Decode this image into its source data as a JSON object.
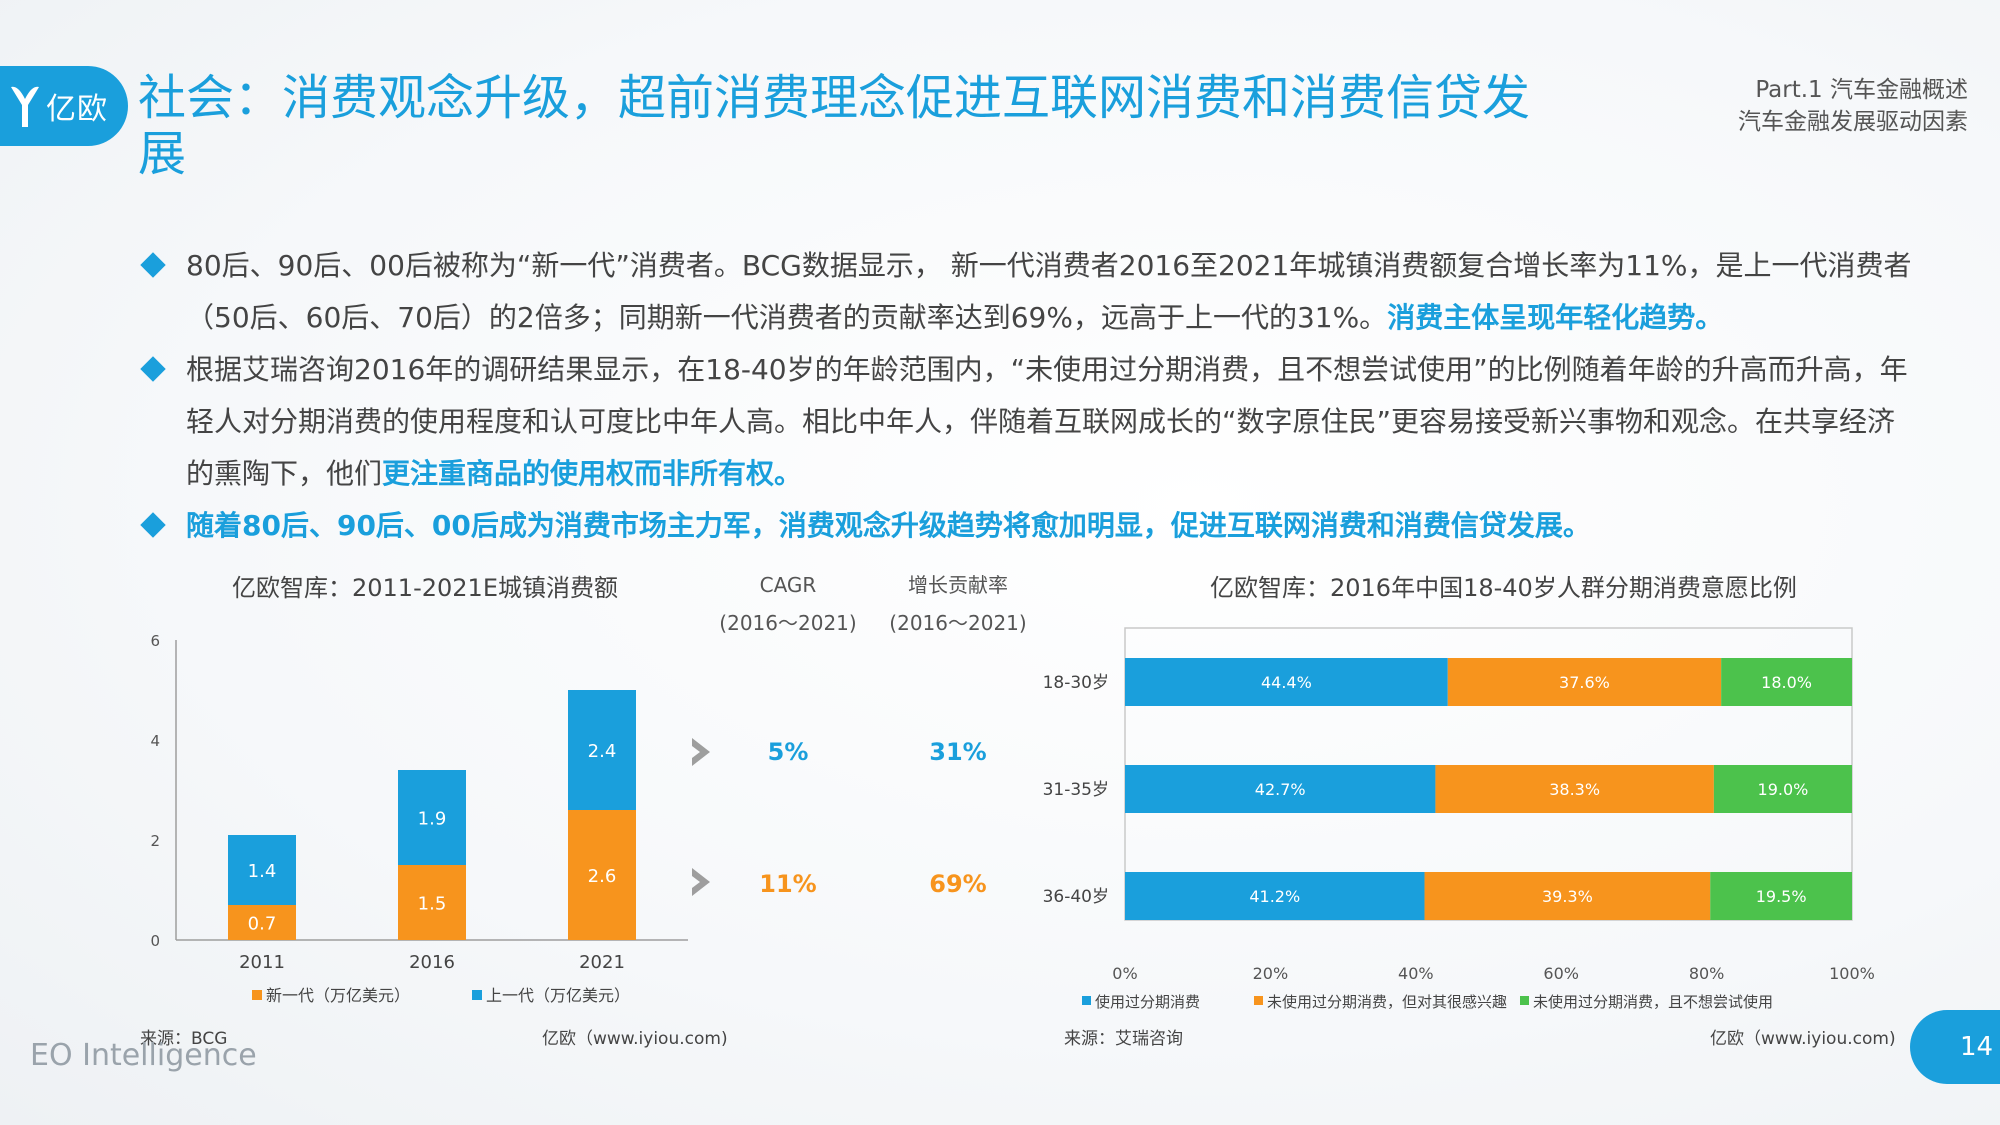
{
  "brand": {
    "logo_text": "亿欧",
    "footer": "EO Intelligence",
    "page_number": "14"
  },
  "title": "社会：消费观念升级，超前消费理念促进互联网消费和消费信贷发展",
  "part": {
    "line1": "Part.1 汽车金融概述",
    "line2": "汽车金融发展驱动因素"
  },
  "bullets": [
    {
      "text": "80后、90后、00后被称为“新一代”消费者。BCG数据显示， 新一代消费者2016至2021年城镇消费额复合增长率为11%，是上一代消费者（50后、60后、70后）的2倍多；同期新一代消费者的贡献率达到69%，远高于上一代的31%。",
      "highlight": "消费主体呈现年轻化趋势。"
    },
    {
      "text": "根据艾瑞咨询2016年的调研结果显示，在18-40岁的年龄范围内，“未使用过分期消费，且不想尝试使用”的比例随着年龄的升高而升高，年轻人对分期消费的使用程度和认可度比中年人高。相比中年人，伴随着互联网成长的“数字原住民”更容易接受新兴事物和观念。在共享经济的熏陶下，他们",
      "highlight": "更注重商品的使用权而非所有权。"
    },
    {
      "text": "",
      "highlight": "随着80后、90后、00后成为消费市场主力军，消费观念升级趋势将愈加明显，促进互联网消费和消费信贷发展。"
    }
  ],
  "left_panel": {
    "title": "亿欧智库：2011-2021E城镇消费额",
    "cagr_header": "CAGR",
    "contrib_header": "增长贡献率",
    "period": "(2016～2021)",
    "rows": [
      {
        "cagr": "5%",
        "contrib": "31%",
        "color": "#1a9fdc"
      },
      {
        "cagr": "11%",
        "contrib": "69%",
        "color": "#f7941d"
      }
    ],
    "source": "来源：BCG",
    "credit": "亿欧（www.iyiou.com)"
  },
  "right_panel": {
    "title": "亿欧智库：2016年中国18-40岁人群分期消费意愿比例",
    "source": "来源：艾瑞咨询",
    "credit": "亿欧（www.iyiou.com)"
  },
  "chart_data": [
    {
      "type": "bar",
      "stacked": true,
      "categories": [
        "2011",
        "2016",
        "2021"
      ],
      "series": [
        {
          "name": "新一代（万亿美元）",
          "values": [
            0.7,
            1.5,
            2.6
          ],
          "color": "#f7941d"
        },
        {
          "name": "上一代（万亿美元）",
          "values": [
            1.4,
            1.9,
            2.4
          ],
          "color": "#1a9fdc"
        }
      ],
      "ylim": [
        0,
        6
      ],
      "yticks": [
        0,
        2,
        4,
        6
      ],
      "legend": "bottom"
    },
    {
      "type": "bar",
      "orientation": "horizontal",
      "stacked": true,
      "categories": [
        "18-30岁",
        "31-35岁",
        "36-40岁"
      ],
      "series": [
        {
          "name": "使用过分期消费",
          "values": [
            44.4,
            42.7,
            41.2
          ],
          "color": "#1a9fdc"
        },
        {
          "name": "未使用过分期消费，但对其很感兴趣",
          "values": [
            37.6,
            38.3,
            39.3
          ],
          "color": "#f7941d"
        },
        {
          "name": "未使用过分期消费，且不想尝试使用",
          "values": [
            18.0,
            19.0,
            19.5
          ],
          "color": "#4cc24c"
        }
      ],
      "xlim": [
        0,
        100
      ],
      "xticks": [
        "0%",
        "20%",
        "40%",
        "60%",
        "80%",
        "100%"
      ],
      "legend": "bottom"
    }
  ]
}
